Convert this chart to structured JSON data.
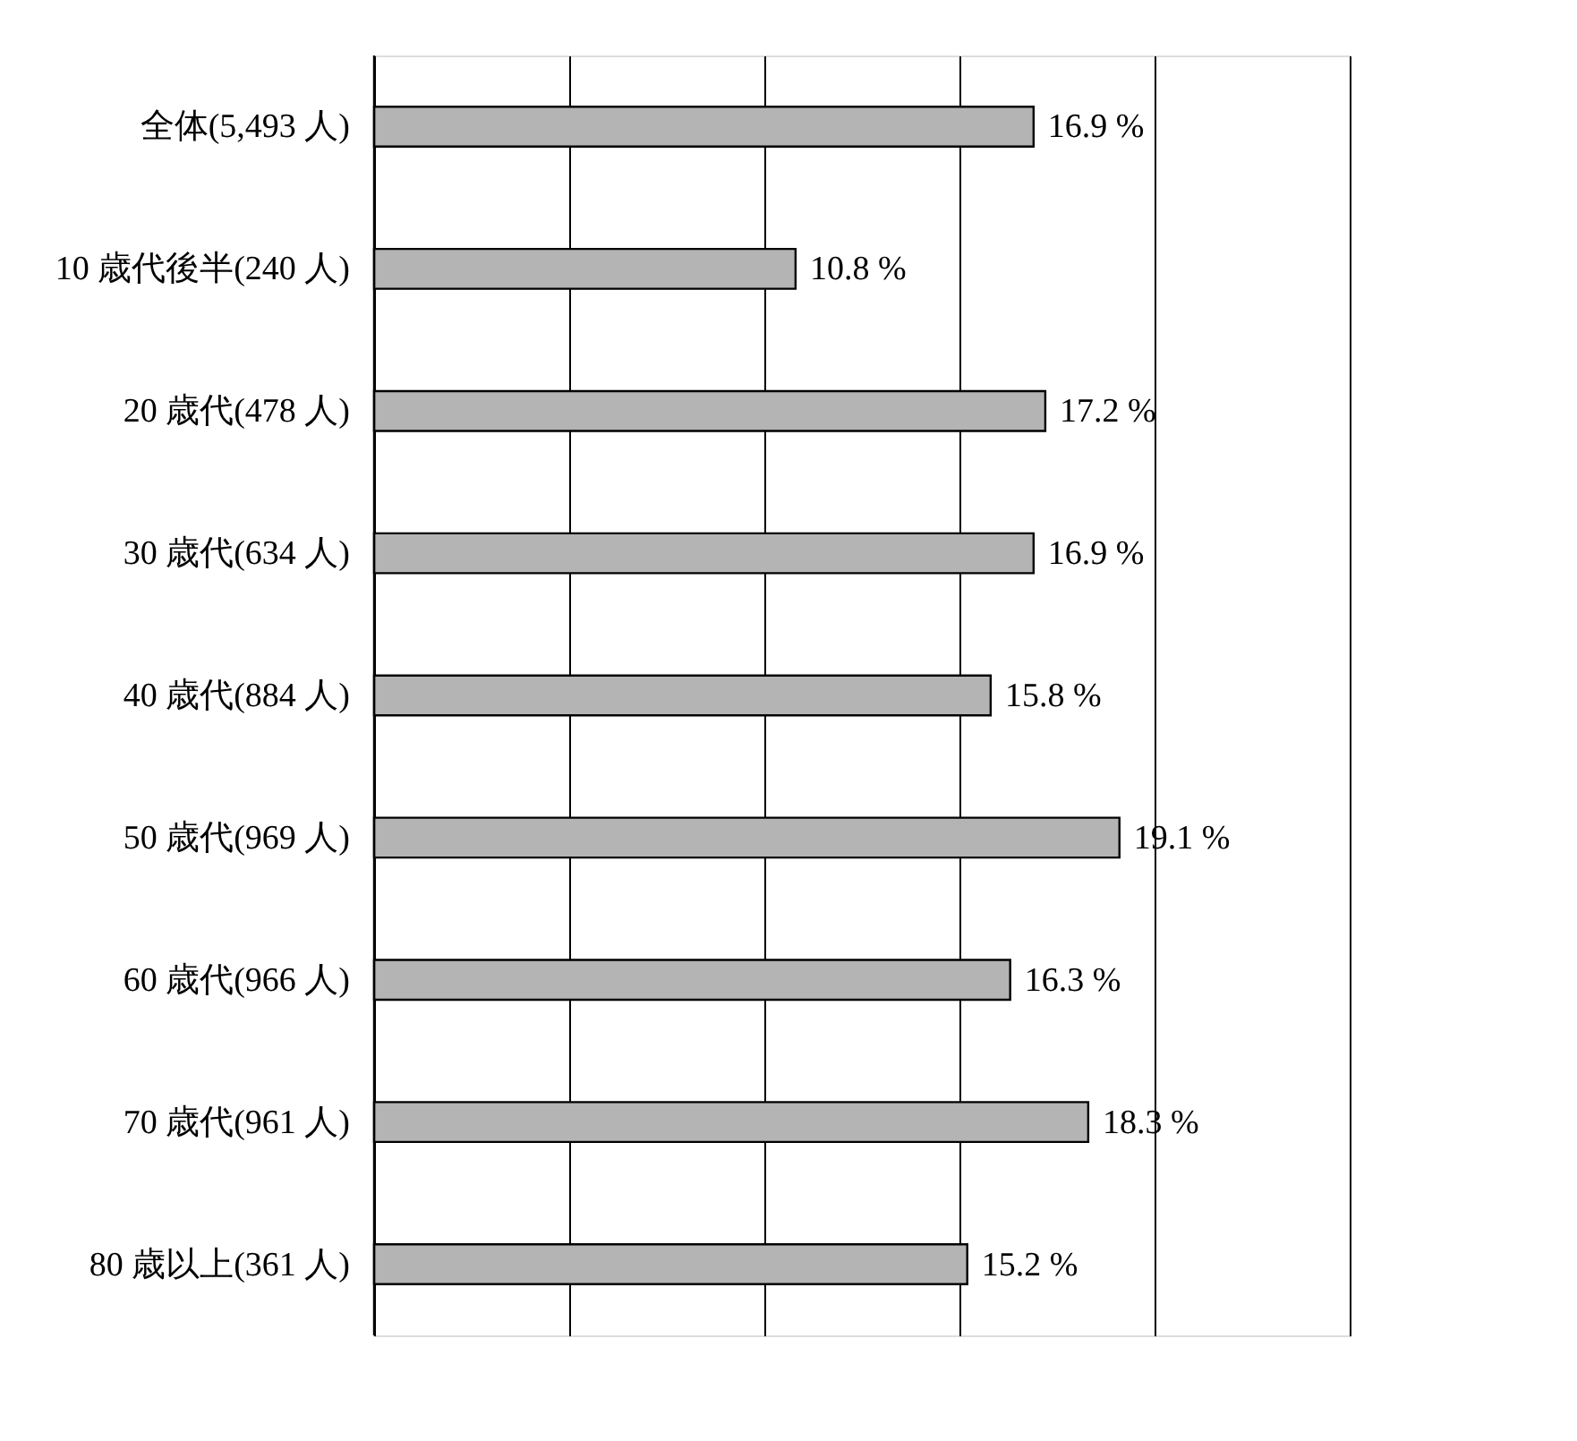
{
  "chart_data": {
    "type": "bar",
    "orientation": "horizontal",
    "categories": [
      "全体(5,493 人)",
      "10 歳代後半(240 人)",
      "20 歳代(478 人)",
      "30 歳代(634 人)",
      "40 歳代(884 人)",
      "50 歳代(969 人)",
      "60 歳代(966 人)",
      "70 歳代(961 人)",
      "80 歳以上(361 人)"
    ],
    "values": [
      16.9,
      10.8,
      17.2,
      16.9,
      15.8,
      19.1,
      16.3,
      18.3,
      15.2
    ],
    "value_labels": [
      "16.9 %",
      "10.8 %",
      "17.2 %",
      "16.9 %",
      "15.8 %",
      "19.1 %",
      "16.3 %",
      "18.3 %",
      "15.2 %"
    ],
    "color": "#b4b4b4",
    "xlim": [
      0,
      25
    ],
    "xticks": [
      {
        "value": 0,
        "label": null
      },
      {
        "value": 5,
        "label": null
      },
      {
        "value": 10,
        "label": null
      },
      {
        "value": 15,
        "label": null
      },
      {
        "value": 20,
        "label": null
      },
      {
        "value": 25,
        "label": null
      }
    ],
    "grid": "x",
    "tick_labels": "y"
  }
}
